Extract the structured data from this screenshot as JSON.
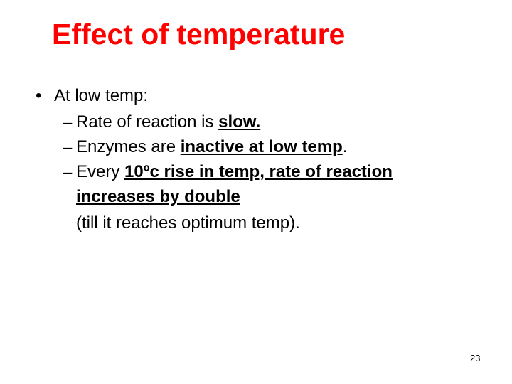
{
  "title": "Effect of temperature",
  "bullets": [
    {
      "text": "At low temp:",
      "items": [
        {
          "segments": [
            {
              "text": "Rate of reaction is "
            },
            {
              "text": "slow.",
              "style": "bold-underline"
            }
          ]
        },
        {
          "segments": [
            {
              "text": "Enzymes are "
            },
            {
              "text": "inactive at low temp",
              "style": "bold-underline"
            },
            {
              "text": "."
            }
          ]
        },
        {
          "segments": [
            {
              "text": "Every "
            },
            {
              "text": "10ºc rise in temp, rate of reaction increases by double",
              "style": "bold-underline"
            }
          ],
          "note": "(till it reaches optimum temp)."
        }
      ]
    }
  ],
  "page_number": "23"
}
